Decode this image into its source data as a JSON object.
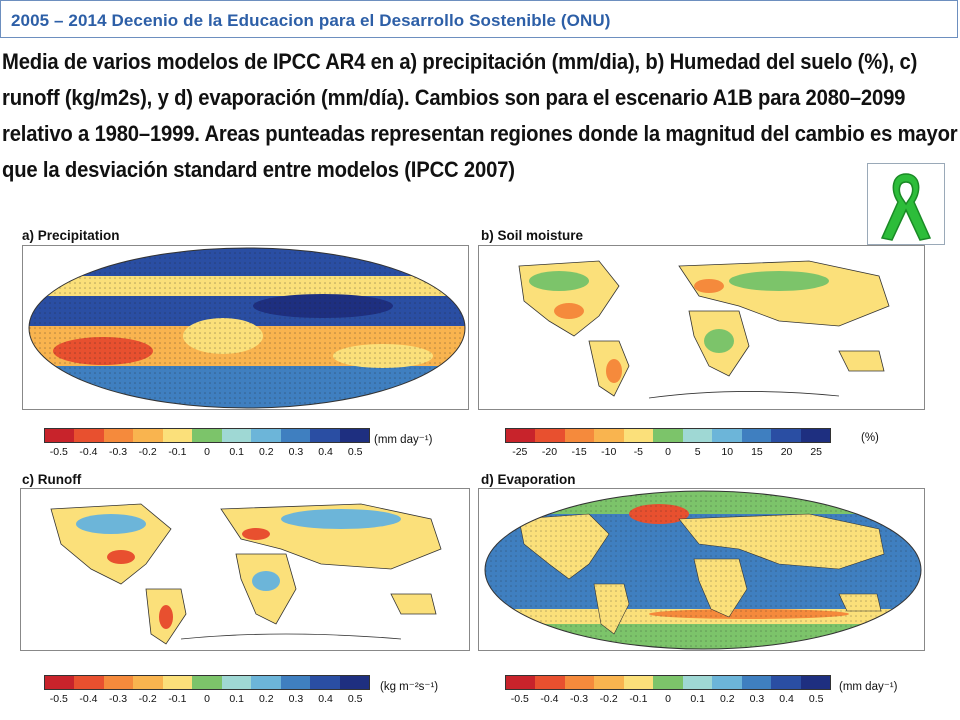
{
  "header": {
    "title": "2005 – 2014  Decenio de la Educacion para el Desarrollo Sostenible (ONU)"
  },
  "intro": {
    "lines": [
      "Media de varios modelos de IPCC AR4 en  a) precipitación (mm/dia), b) Humedad del suelo (%), c)",
      "runoff (kg/m2s), y d) evaporación (mm/día). Cambios son para el escenario A1B para 2080–2099",
      "relativo a 1980–1999. Areas punteadas representan regiones donde la magnitud del cambio es mayor",
      "que la desviación standard entre modelos (IPCC 2007)"
    ]
  },
  "ribbon_icon": "green-awareness-ribbon-icon",
  "panels": [
    {
      "id": "a",
      "label": "a) Precipitation",
      "legend": {
        "ticks": [
          "-0.5",
          "-0.4",
          "-0.3",
          "-0.2",
          "-0.1",
          "0",
          "0.1",
          "0.2",
          "0.3",
          "0.4",
          "0.5"
        ],
        "unit": "(mm day⁻¹)"
      }
    },
    {
      "id": "b",
      "label": "b) Soil moisture",
      "legend": {
        "ticks": [
          "-25",
          "-20",
          "-15",
          "-10",
          "-5",
          "0",
          "5",
          "10",
          "15",
          "20",
          "25"
        ],
        "unit": "(%)"
      }
    },
    {
      "id": "c",
      "label": "c) Runoff",
      "legend": {
        "ticks": [
          "-0.5",
          "-0.4",
          "-0.3",
          "-0.2",
          "-0.1",
          "0",
          "0.1",
          "0.2",
          "0.3",
          "0.4",
          "0.5"
        ],
        "unit": "(kg m⁻²s⁻¹)"
      }
    },
    {
      "id": "d",
      "label": "d) Evaporation",
      "legend": {
        "ticks": [
          "-0.5",
          "-0.4",
          "-0.3",
          "-0.2",
          "-0.1",
          "0",
          "0.1",
          "0.2",
          "0.3",
          "0.4",
          "0.5"
        ],
        "unit": "(mm day⁻¹)"
      }
    }
  ],
  "colorbar": [
    "#c8232b",
    "#e8502f",
    "#f58a3c",
    "#f9b44f",
    "#fbe07a",
    "#7cc46a",
    "#9fd8d4",
    "#6cb5d9",
    "#3f7fc0",
    "#2a4ea3",
    "#1e2f80"
  ],
  "colors": {
    "header_text": "#2d5fa7",
    "ribbon": "#2dbd3a"
  }
}
